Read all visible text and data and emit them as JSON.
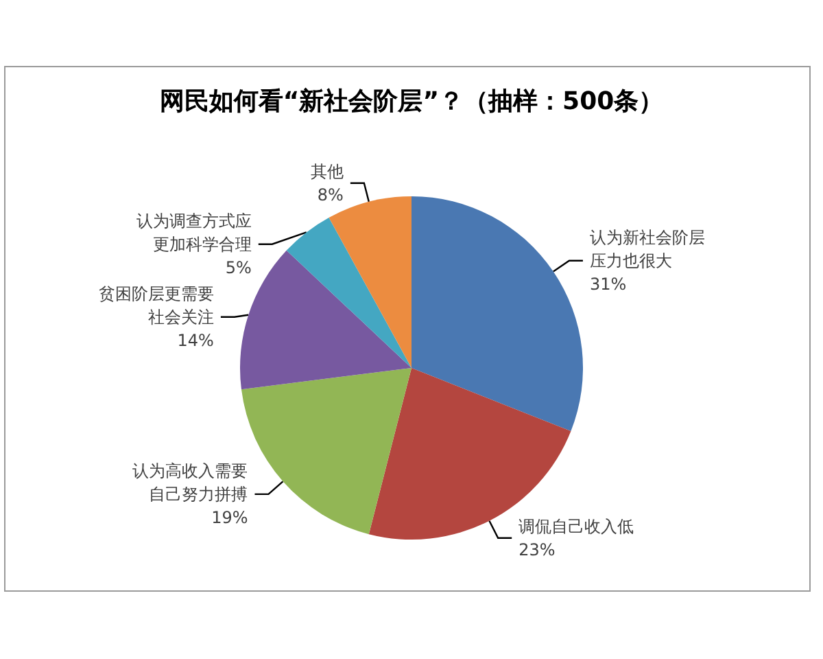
{
  "chart_data": {
    "type": "pie",
    "title": "网民如何看“新社会阶层”？（抽样：500条）",
    "categories": [
      "认为新社会阶层压力也很大",
      "调侃自己收入低",
      "认为高收入需要自己努力拼搏",
      "贫困阶层更需要社会关注",
      "认为调查方式应更加科学合理",
      "其他"
    ],
    "values": [
      31,
      23,
      19,
      14,
      5,
      8
    ],
    "value_labels": [
      "31%",
      "23%",
      "19%",
      "14%",
      "5%",
      "8%"
    ],
    "colors": [
      "#4a78b2",
      "#b4463f",
      "#92b655",
      "#7759a0",
      "#44a7c2",
      "#ec8c40"
    ]
  }
}
